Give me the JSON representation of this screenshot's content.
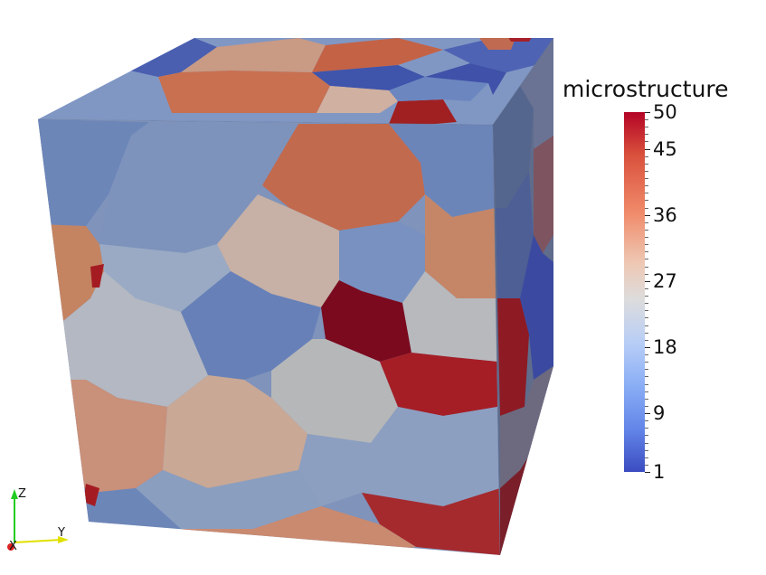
{
  "legend": {
    "title": "microstructure",
    "ticks": [
      {
        "value": 50,
        "label": "50"
      },
      {
        "value": 45,
        "label": "45"
      },
      {
        "value": 36,
        "label": "36"
      },
      {
        "value": 27,
        "label": "27"
      },
      {
        "value": 18,
        "label": "18"
      },
      {
        "value": 9,
        "label": "9"
      },
      {
        "value": 1,
        "label": "1"
      }
    ],
    "range": [
      1,
      50
    ],
    "colormap": "cool-to-warm"
  },
  "orientation_axes": {
    "z": "Z",
    "y": "Y",
    "x": "X",
    "colors": {
      "z": "#22cc22",
      "y": "#e0e000",
      "x": "#dd2222"
    }
  },
  "colors": {
    "dark_red": "#8b0a1e",
    "red": "#b83a3a",
    "salmon": "#c07058",
    "tan": "#c8a896",
    "light_gray": "#b7b8b9",
    "pale_blue": "#8a9ec0",
    "blue": "#5f79b4",
    "dark_blue": "#3447a8"
  }
}
